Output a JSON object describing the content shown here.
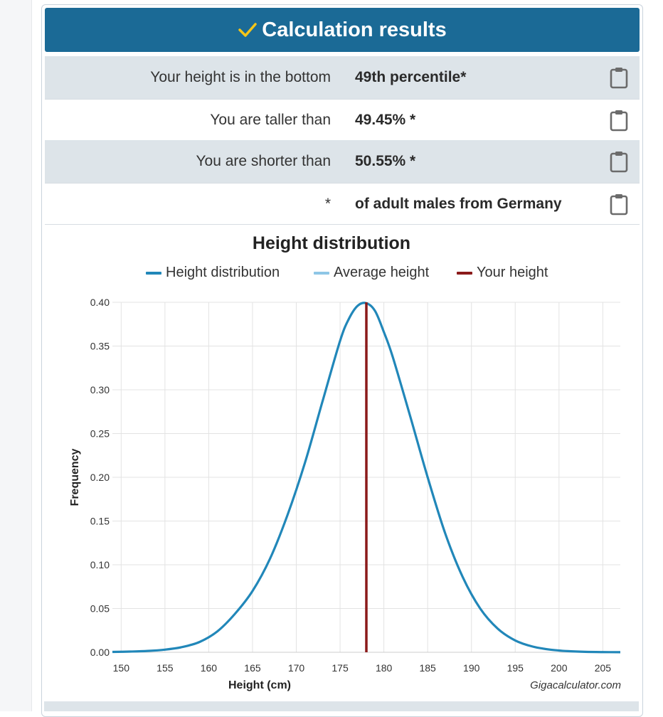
{
  "header": {
    "title": "Calculation results"
  },
  "results": [
    {
      "label": "Your height is in the bottom",
      "value": "49th percentile*"
    },
    {
      "label": "You are taller than",
      "value": "49.45% *"
    },
    {
      "label": "You are shorter than",
      "value": "50.55% *"
    },
    {
      "label": "*",
      "value": "of adult males from Germany"
    }
  ],
  "colors": {
    "header_bg": "#1b6a96",
    "check": "#f5c518",
    "distribution": "#2187b9",
    "average": "#8ec6e6",
    "your_height": "#8b1a1a",
    "grid": "#e3e3e3"
  },
  "chart_data": {
    "type": "line",
    "title": "Height distribution",
    "xlabel": "Height (cm)",
    "ylabel": "Frequency",
    "credit": "Gigacalculator.com",
    "xlim": [
      149,
      207
    ],
    "ylim": [
      0,
      0.4
    ],
    "xticks": [
      150,
      155,
      160,
      165,
      170,
      175,
      180,
      185,
      190,
      195,
      200,
      205
    ],
    "yticks": [
      0,
      0.05,
      0.1,
      0.15,
      0.2,
      0.25,
      0.3,
      0.35,
      0.4
    ],
    "grid": true,
    "legend": [
      "Height distribution",
      "Average height",
      "Your height"
    ],
    "series": [
      {
        "name": "Height distribution",
        "x": [
          149,
          151,
          153,
          155,
          157,
          159,
          161,
          163,
          165,
          167,
          169,
          171,
          173,
          175,
          176,
          177,
          178,
          179,
          180,
          181,
          183,
          185,
          187,
          189,
          191,
          193,
          195,
          197,
          199,
          201,
          203,
          205,
          207
        ],
        "y": [
          0.0004,
          0.0008,
          0.0015,
          0.003,
          0.006,
          0.012,
          0.024,
          0.044,
          0.07,
          0.107,
          0.157,
          0.217,
          0.287,
          0.356,
          0.381,
          0.396,
          0.399,
          0.39,
          0.366,
          0.338,
          0.27,
          0.2,
          0.136,
          0.086,
          0.05,
          0.027,
          0.0135,
          0.0065,
          0.003,
          0.0013,
          0.0005,
          0.0002,
          0.0001
        ]
      },
      {
        "name": "Average height",
        "x": 178.0
      },
      {
        "name": "Your height",
        "x": 178.0
      }
    ]
  }
}
